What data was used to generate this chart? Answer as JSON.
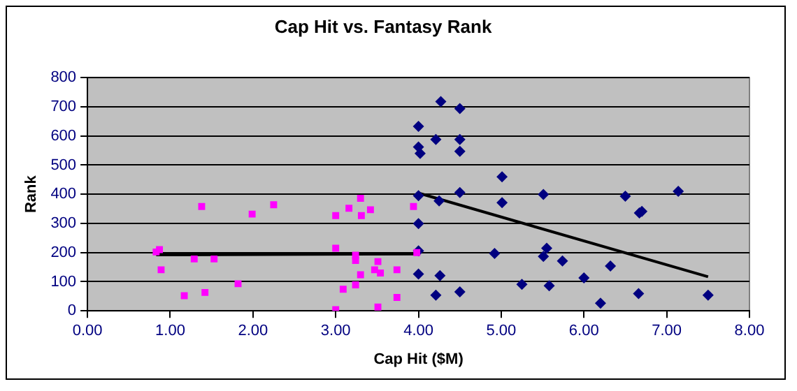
{
  "chart_data": {
    "type": "scatter",
    "title": "Cap Hit vs. Fantasy Rank",
    "xlabel": "Cap Hit ($M)",
    "ylabel": "Rank",
    "xlim": [
      0,
      8
    ],
    "xticks": [
      {
        "value": 0,
        "label": "0.00"
      },
      {
        "value": 1,
        "label": "1.00"
      },
      {
        "value": 2,
        "label": "2.00"
      },
      {
        "value": 3,
        "label": "3.00"
      },
      {
        "value": 4,
        "label": "4.00"
      },
      {
        "value": 5,
        "label": "5.00"
      },
      {
        "value": 6,
        "label": "6.00"
      },
      {
        "value": 7,
        "label": "7.00"
      },
      {
        "value": 8,
        "label": "8.00"
      }
    ],
    "ylim": [
      0,
      800
    ],
    "yticks": [
      0,
      100,
      200,
      300,
      400,
      500,
      600,
      700,
      800
    ],
    "grid": "y",
    "legend": false,
    "series": [
      {
        "marker": "square",
        "color": "#ff00ff",
        "x": [
          0.83,
          0.87,
          0.89,
          1.17,
          1.29,
          1.38,
          1.42,
          1.53,
          1.82,
          1.99,
          2.25,
          3.0,
          3.0,
          3.0,
          3.09,
          3.16,
          3.24,
          3.24,
          3.24,
          3.3,
          3.31,
          3.3,
          3.42,
          3.47,
          3.51,
          3.54,
          3.51,
          3.74,
          3.74,
          3.94,
          3.98
        ],
        "values": [
          202,
          210,
          141,
          52,
          178,
          358,
          63,
          178,
          93,
          332,
          364,
          327,
          215,
          4,
          74,
          352,
          191,
          173,
          89,
          386,
          327,
          124,
          347,
          141,
          169,
          130,
          13,
          141,
          46,
          358,
          200
        ]
      },
      {
        "marker": "diamond",
        "color": "#000080",
        "x": [
          4.0,
          4.0,
          4.02,
          4.21,
          4.0,
          4.0,
          4.0,
          4.0,
          4.26,
          4.21,
          4.27,
          4.5,
          4.5,
          4.5,
          4.5,
          4.25,
          4.5,
          5.01,
          5.01,
          5.51,
          6.5,
          7.14,
          6.67,
          6.7,
          4.92,
          5.51,
          5.55,
          5.74,
          6.32,
          5.25,
          5.58,
          6.0,
          6.2,
          6.66,
          7.5
        ],
        "values": [
          633,
          562,
          540,
          588,
          395,
          299,
          206,
          126,
          121,
          54,
          718,
          694,
          588,
          547,
          406,
          377,
          65,
          460,
          371,
          399,
          393,
          410,
          336,
          341,
          197,
          187,
          215,
          171,
          154,
          91,
          86,
          113,
          26,
          59,
          54
        ]
      },
      {
        "type": "line",
        "color": "#000000",
        "x": [
          0.83,
          3.98
        ],
        "values": [
          192,
          195
        ]
      },
      {
        "type": "line",
        "color": "#000000",
        "x": [
          4.0,
          7.5
        ],
        "values": [
          404,
          117
        ]
      }
    ]
  }
}
